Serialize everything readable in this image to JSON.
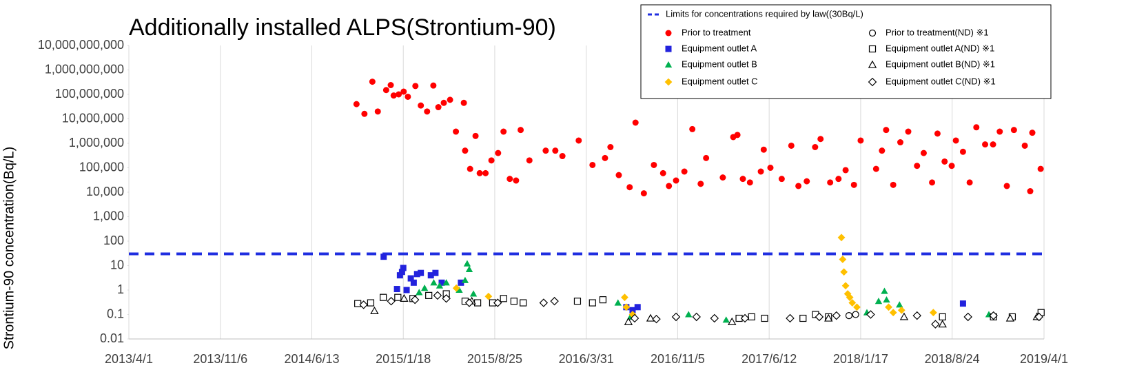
{
  "chart_data": {
    "type": "scatter",
    "title": "Additionally installed ALPS(Strontium-90)",
    "y_label": "Strontium-90 concentration(Bq/L)",
    "log_y": true,
    "grid": "x",
    "legend": "upper right",
    "xlim": [
      "2013/4/1",
      "2019/4/1"
    ],
    "xticks": [
      "2013/4/1",
      "2013/11/6",
      "2014/6/13",
      "2015/1/18",
      "2015/8/25",
      "2016/3/31",
      "2016/11/5",
      "2017/6/12",
      "2018/1/17",
      "2018/8/24",
      "2019/4/1"
    ],
    "ylim": [
      0.01,
      10000000000
    ],
    "yticks": [
      0.01,
      0.1,
      1,
      10,
      100,
      {
        "value": 1000,
        "label": "1,000"
      },
      {
        "value": 10000,
        "label": "10,000"
      },
      {
        "value": 100000,
        "label": "100,000"
      },
      {
        "value": 1000000,
        "label": "1,000,000"
      },
      {
        "value": 10000000,
        "label": "10,000,000"
      },
      {
        "value": 100000000,
        "label": "100,000,000"
      },
      {
        "value": 1000000000,
        "label": "1,000,000,000"
      },
      {
        "value": 10000000000,
        "label": "10,000,000,000"
      }
    ],
    "hlines": [
      {
        "name": "Limits for concentrations required by law((30Bq/L)",
        "value": 30,
        "color": "#1f2ee0"
      }
    ],
    "series": [
      {
        "name": "Prior to treatment",
        "color": "#ff0000",
        "marker": "circle",
        "filled": true,
        "x": [
          "2014/9/28",
          "2014/10/17",
          "2014/11/5",
          "2014/11/18",
          "2014/12/8",
          "2014/12/19",
          "2014/12/26",
          "2015/1/7",
          "2015/1/19",
          "2015/1/29",
          "2015/2/16",
          "2015/3/1",
          "2015/3/16",
          "2015/3/31",
          "2015/4/12",
          "2015/4/25",
          "2015/5/10",
          "2015/5/24",
          "2015/6/12",
          "2015/6/15",
          "2015/6/27",
          "2015/7/10",
          "2015/7/20",
          "2015/8/3",
          "2015/8/17",
          "2015/9/2",
          "2015/9/15",
          "2015/9/30",
          "2015/10/15",
          "2015/10/26",
          "2015/11/16",
          "2015/12/25",
          "2016/1/17",
          "2016/2/3",
          "2016/3/13",
          "2016/4/15",
          "2016/5/15",
          "2016/5/28",
          "2016/6/17",
          "2016/7/13",
          "2016/7/27",
          "2016/8/16",
          "2016/9/9",
          "2016/10/1",
          "2016/10/15",
          "2016/11/1",
          "2016/11/21",
          "2016/12/10",
          "2016/12/30",
          "2017/1/12",
          "2017/2/21",
          "2017/3/18",
          "2017/3/28",
          "2017/4/10",
          "2017/4/27",
          "2017/5/23",
          "2017/5/30",
          "2017/6/15",
          "2017/7/12",
          "2017/8/4",
          "2017/8/21",
          "2017/9/10",
          "2017/9/30",
          "2017/10/13",
          "2017/11/5",
          "2017/11/25",
          "2017/12/12",
          "2018/1/1",
          "2018/1/17",
          "2018/2/23",
          "2018/3/9",
          "2018/3/19",
          "2018/4/5",
          "2018/4/22",
          "2018/5/11",
          "2018/6/1",
          "2018/6/17",
          "2018/7/7",
          "2018/7/20",
          "2018/8/6",
          "2018/8/23",
          "2018/9/2",
          "2018/9/19",
          "2018/10/5",
          "2018/10/21",
          "2018/11/11",
          "2018/11/30",
          "2018/12/16",
          "2019/1/2",
          "2019/1/19",
          "2019/2/14",
          "2019/2/27",
          "2019/3/4",
          "2019/3/24"
        ],
        "values": [
          40000000,
          16000000,
          330000000,
          20000000,
          150000000,
          240000000,
          90000000,
          100000000,
          130000000,
          80000000,
          220000000,
          35000000,
          20000000,
          230000000,
          30000000,
          45000000,
          60000000,
          3000000,
          45000000,
          500000,
          90000,
          2000000,
          60000,
          60000,
          200000,
          400000,
          3000000,
          35000,
          30000,
          3500000,
          200000,
          500000,
          500000,
          300000,
          1300000,
          130000,
          250000,
          700000,
          50000,
          16000,
          7000000,
          9000,
          130000,
          60000,
          18000,
          30000,
          70000,
          3800000,
          22000,
          250000,
          40000,
          1800000,
          2200000,
          35000,
          25000,
          70000,
          550000,
          100000,
          35000,
          800000,
          18000,
          28000,
          700000,
          1500000,
          25000,
          35000,
          80000,
          20000,
          1300000,
          90000,
          500000,
          3500000,
          20000,
          1100000,
          3000000,
          120000,
          400000,
          25000,
          2500000,
          180000,
          120000,
          1300000,
          450000,
          25000,
          4500000,
          900000,
          900000,
          3000000,
          18000,
          3500000,
          800000,
          11000,
          2700000,
          90000
        ]
      },
      {
        "name": "Equipment outlet A",
        "color": "#2222dd",
        "marker": "square",
        "filled": true,
        "x": [
          "2014/12/2",
          "2015/1/3",
          "2015/1/10",
          "2015/1/15",
          "2015/1/18",
          "2015/1/26",
          "2015/2/5",
          "2015/2/12",
          "2015/2/20",
          "2015/3/1",
          "2015/3/25",
          "2015/4/5",
          "2015/4/20",
          "2015/6/5",
          "2016/7/5",
          "2016/7/20",
          "2016/8/1",
          "2018/9/19"
        ],
        "values": [
          23,
          1.1,
          4,
          5.5,
          8,
          1,
          3,
          2,
          4.5,
          5,
          4,
          5,
          2,
          2,
          0.2,
          0.15,
          0.2,
          0.28
        ]
      },
      {
        "name": "Equipment outlet B",
        "color": "#00b050",
        "marker": "triangle",
        "filled": true,
        "x": [
          "2015/2/25",
          "2015/3/10",
          "2015/4/1",
          "2015/4/15",
          "2015/5/1",
          "2015/6/1",
          "2015/6/15",
          "2015/6/20",
          "2015/6/25",
          "2015/7/5",
          "2016/6/15",
          "2016/7/15",
          "2016/12/1",
          "2017/3/1",
          "2018/2/1",
          "2018/3/1",
          "2018/3/15",
          "2018/3/20",
          "2018/4/20",
          "2018/11/20"
        ],
        "values": [
          0.8,
          1.2,
          2,
          1.5,
          2,
          1,
          2.5,
          12,
          7,
          0.7,
          0.3,
          0.08,
          0.1,
          0.06,
          0.12,
          0.35,
          0.9,
          0.4,
          0.25,
          0.1
        ]
      },
      {
        "name": "Equipment outlet C",
        "color": "#ffc000",
        "marker": "diamond",
        "filled": true,
        "x": [
          "2015/5/25",
          "2015/8/10",
          "2016/7/1",
          "2016/7/5",
          "2016/7/20",
          "2017/12/2",
          "2017/12/5",
          "2017/12/8",
          "2017/12/12",
          "2017/12/17",
          "2017/12/22",
          "2017/12/28",
          "2018/1/8",
          "2018/3/25",
          "2018/4/5",
          "2018/4/25",
          "2018/7/10"
        ],
        "values": [
          1.2,
          0.55,
          0.5,
          0.2,
          0.1,
          140,
          18,
          5.5,
          1.5,
          0.7,
          0.5,
          0.3,
          0.2,
          0.2,
          0.12,
          0.15,
          0.12
        ]
      },
      {
        "name": "Prior to treatment(ND)  ※1",
        "color": "#000000",
        "marker": "circle",
        "filled": false,
        "x": [
          "2017/12/20",
          "2018/1/5"
        ],
        "values": [
          0.09,
          0.1
        ]
      },
      {
        "name": "Equipment outlet A(ND)  ※1",
        "color": "#000000",
        "marker": "square",
        "filled": false,
        "x": [
          "2014/10/1",
          "2014/11/1",
          "2014/12/1",
          "2015/1/5",
          "2015/2/10",
          "2015/3/20",
          "2015/5/1",
          "2015/6/15",
          "2015/7/15",
          "2015/8/20",
          "2015/9/15",
          "2015/10/10",
          "2015/11/1",
          "2016/3/10",
          "2016/4/15",
          "2016/5/10",
          "2017/4/1",
          "2017/5/1",
          "2017/6/1",
          "2017/9/1",
          "2017/10/1",
          "2017/11/1",
          "2018/8/1",
          "2018/12/1",
          "2019/1/15",
          "2019/3/25"
        ],
        "values": [
          0.28,
          0.3,
          0.5,
          0.5,
          0.45,
          0.6,
          0.7,
          0.35,
          0.3,
          0.3,
          0.45,
          0.35,
          0.3,
          0.35,
          0.3,
          0.4,
          0.07,
          0.08,
          0.07,
          0.07,
          0.1,
          0.08,
          0.08,
          0.08,
          0.08,
          0.12
        ]
      },
      {
        "name": "Equipment outlet B(ND)  ※1",
        "color": "#000000",
        "marker": "triangle",
        "filled": false,
        "x": [
          "2014/11/10",
          "2015/1/20",
          "2015/7/1",
          "2016/7/10",
          "2016/9/1",
          "2017/3/15",
          "2017/11/1",
          "2018/5/1",
          "2018/8/1",
          "2019/1/10",
          "2019/3/15"
        ],
        "values": [
          0.14,
          0.45,
          0.35,
          0.05,
          0.07,
          0.05,
          0.07,
          0.08,
          0.04,
          0.07,
          0.08
        ]
      },
      {
        "name": "Equipment outlet C(ND)  ※1",
        "color": "#000000",
        "marker": "diamond",
        "filled": false,
        "x": [
          "2014/10/15",
          "2014/12/20",
          "2015/2/15",
          "2015/4/10",
          "2015/5/1",
          "2015/6/25",
          "2015/9/1",
          "2015/12/20",
          "2016/1/15",
          "2016/7/25",
          "2016/9/15",
          "2016/11/1",
          "2016/12/20",
          "2017/2/1",
          "2017/4/15",
          "2017/8/1",
          "2017/10/10",
          "2017/11/20",
          "2018/2/10",
          "2018/6/1",
          "2018/7/15",
          "2018/10/1",
          "2018/12/1",
          "2019/3/20"
        ],
        "values": [
          0.25,
          0.35,
          0.4,
          0.6,
          0.45,
          0.3,
          0.3,
          0.3,
          0.35,
          0.07,
          0.065,
          0.08,
          0.08,
          0.07,
          0.07,
          0.07,
          0.08,
          0.09,
          0.1,
          0.09,
          0.04,
          0.08,
          0.09,
          0.08
        ]
      }
    ]
  }
}
